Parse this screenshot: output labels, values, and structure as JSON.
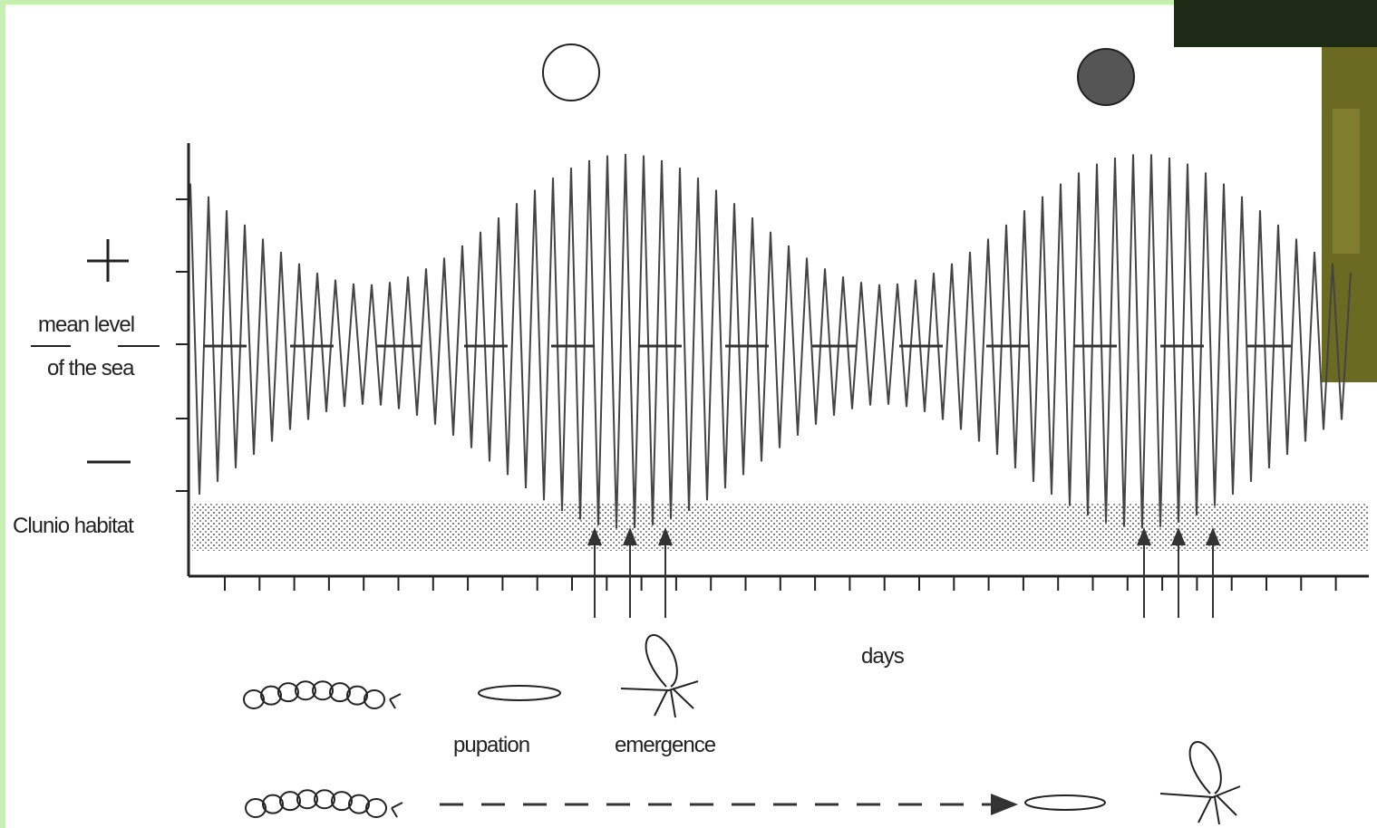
{
  "labels": {
    "sea_level": [
      "mean level",
      "of the sea"
    ],
    "habitat": "Clunio habitat",
    "x_axis": "days",
    "stages": [
      "pupation",
      "emergence"
    ]
  }
}
